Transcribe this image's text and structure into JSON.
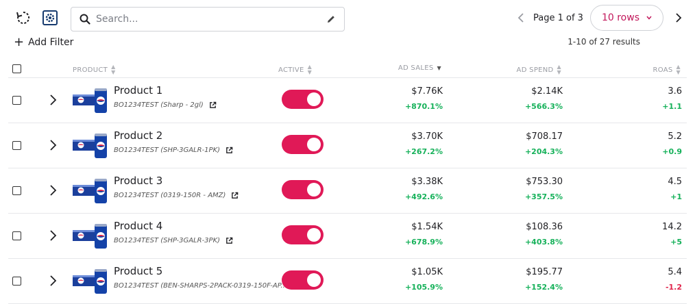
{
  "toolbar": {
    "refresh_icon": "refresh-icon",
    "settings_icon": "gear-icon",
    "search_placeholder": "Search...",
    "edit_icon": "pencil-icon"
  },
  "pagination": {
    "page_label": "Page 1 of 3",
    "rows_label": "10 rows",
    "results_label": "1-10 of 27 results"
  },
  "filter": {
    "add_label": "Add Filter"
  },
  "columns": {
    "product": "PRODUCT",
    "active": "ACTIVE",
    "ad_sales": "AD SALES",
    "ad_spend": "AD SPEND",
    "roas": "ROAS"
  },
  "colors": {
    "accent": "#e01957",
    "positive": "#16b15a",
    "negative": "#e0244b"
  },
  "rows": [
    {
      "name": "Product 1",
      "sku": "BO1234TEST (Sharp - 2gl)",
      "active": true,
      "ad_sales": "$7.76K",
      "ad_sales_delta": "+870.1%",
      "ad_spend": "$2.14K",
      "ad_spend_delta": "+566.3%",
      "roas": "3.6",
      "roas_delta": "+1.1"
    },
    {
      "name": "Product 2",
      "sku": "BO1234TEST (SHP-3GALR-1PK)",
      "active": true,
      "ad_sales": "$3.70K",
      "ad_sales_delta": "+267.2%",
      "ad_spend": "$708.17",
      "ad_spend_delta": "+204.3%",
      "roas": "5.2",
      "roas_delta": "+0.9"
    },
    {
      "name": "Product 3",
      "sku": "BO1234TEST (0319-150R - AMZ)",
      "active": true,
      "ad_sales": "$3.38K",
      "ad_sales_delta": "+492.6%",
      "ad_spend": "$753.30",
      "ad_spend_delta": "+357.5%",
      "roas": "4.5",
      "roas_delta": "+1"
    },
    {
      "name": "Product 4",
      "sku": "BO1234TEST (SHP-3GALR-3PK)",
      "active": true,
      "ad_sales": "$1.54K",
      "ad_sales_delta": "+678.9%",
      "ad_spend": "$108.36",
      "ad_spend_delta": "+403.8%",
      "roas": "14.2",
      "roas_delta": "+5"
    },
    {
      "name": "Product 5",
      "sku": "BO1234TEST (BEN-SHARPS-2PACK-0319-150F-AP...",
      "active": true,
      "ad_sales": "$1.05K",
      "ad_sales_delta": "+105.9%",
      "ad_spend": "$195.77",
      "ad_spend_delta": "+152.4%",
      "roas": "5.4",
      "roas_delta": "-1.2"
    }
  ]
}
